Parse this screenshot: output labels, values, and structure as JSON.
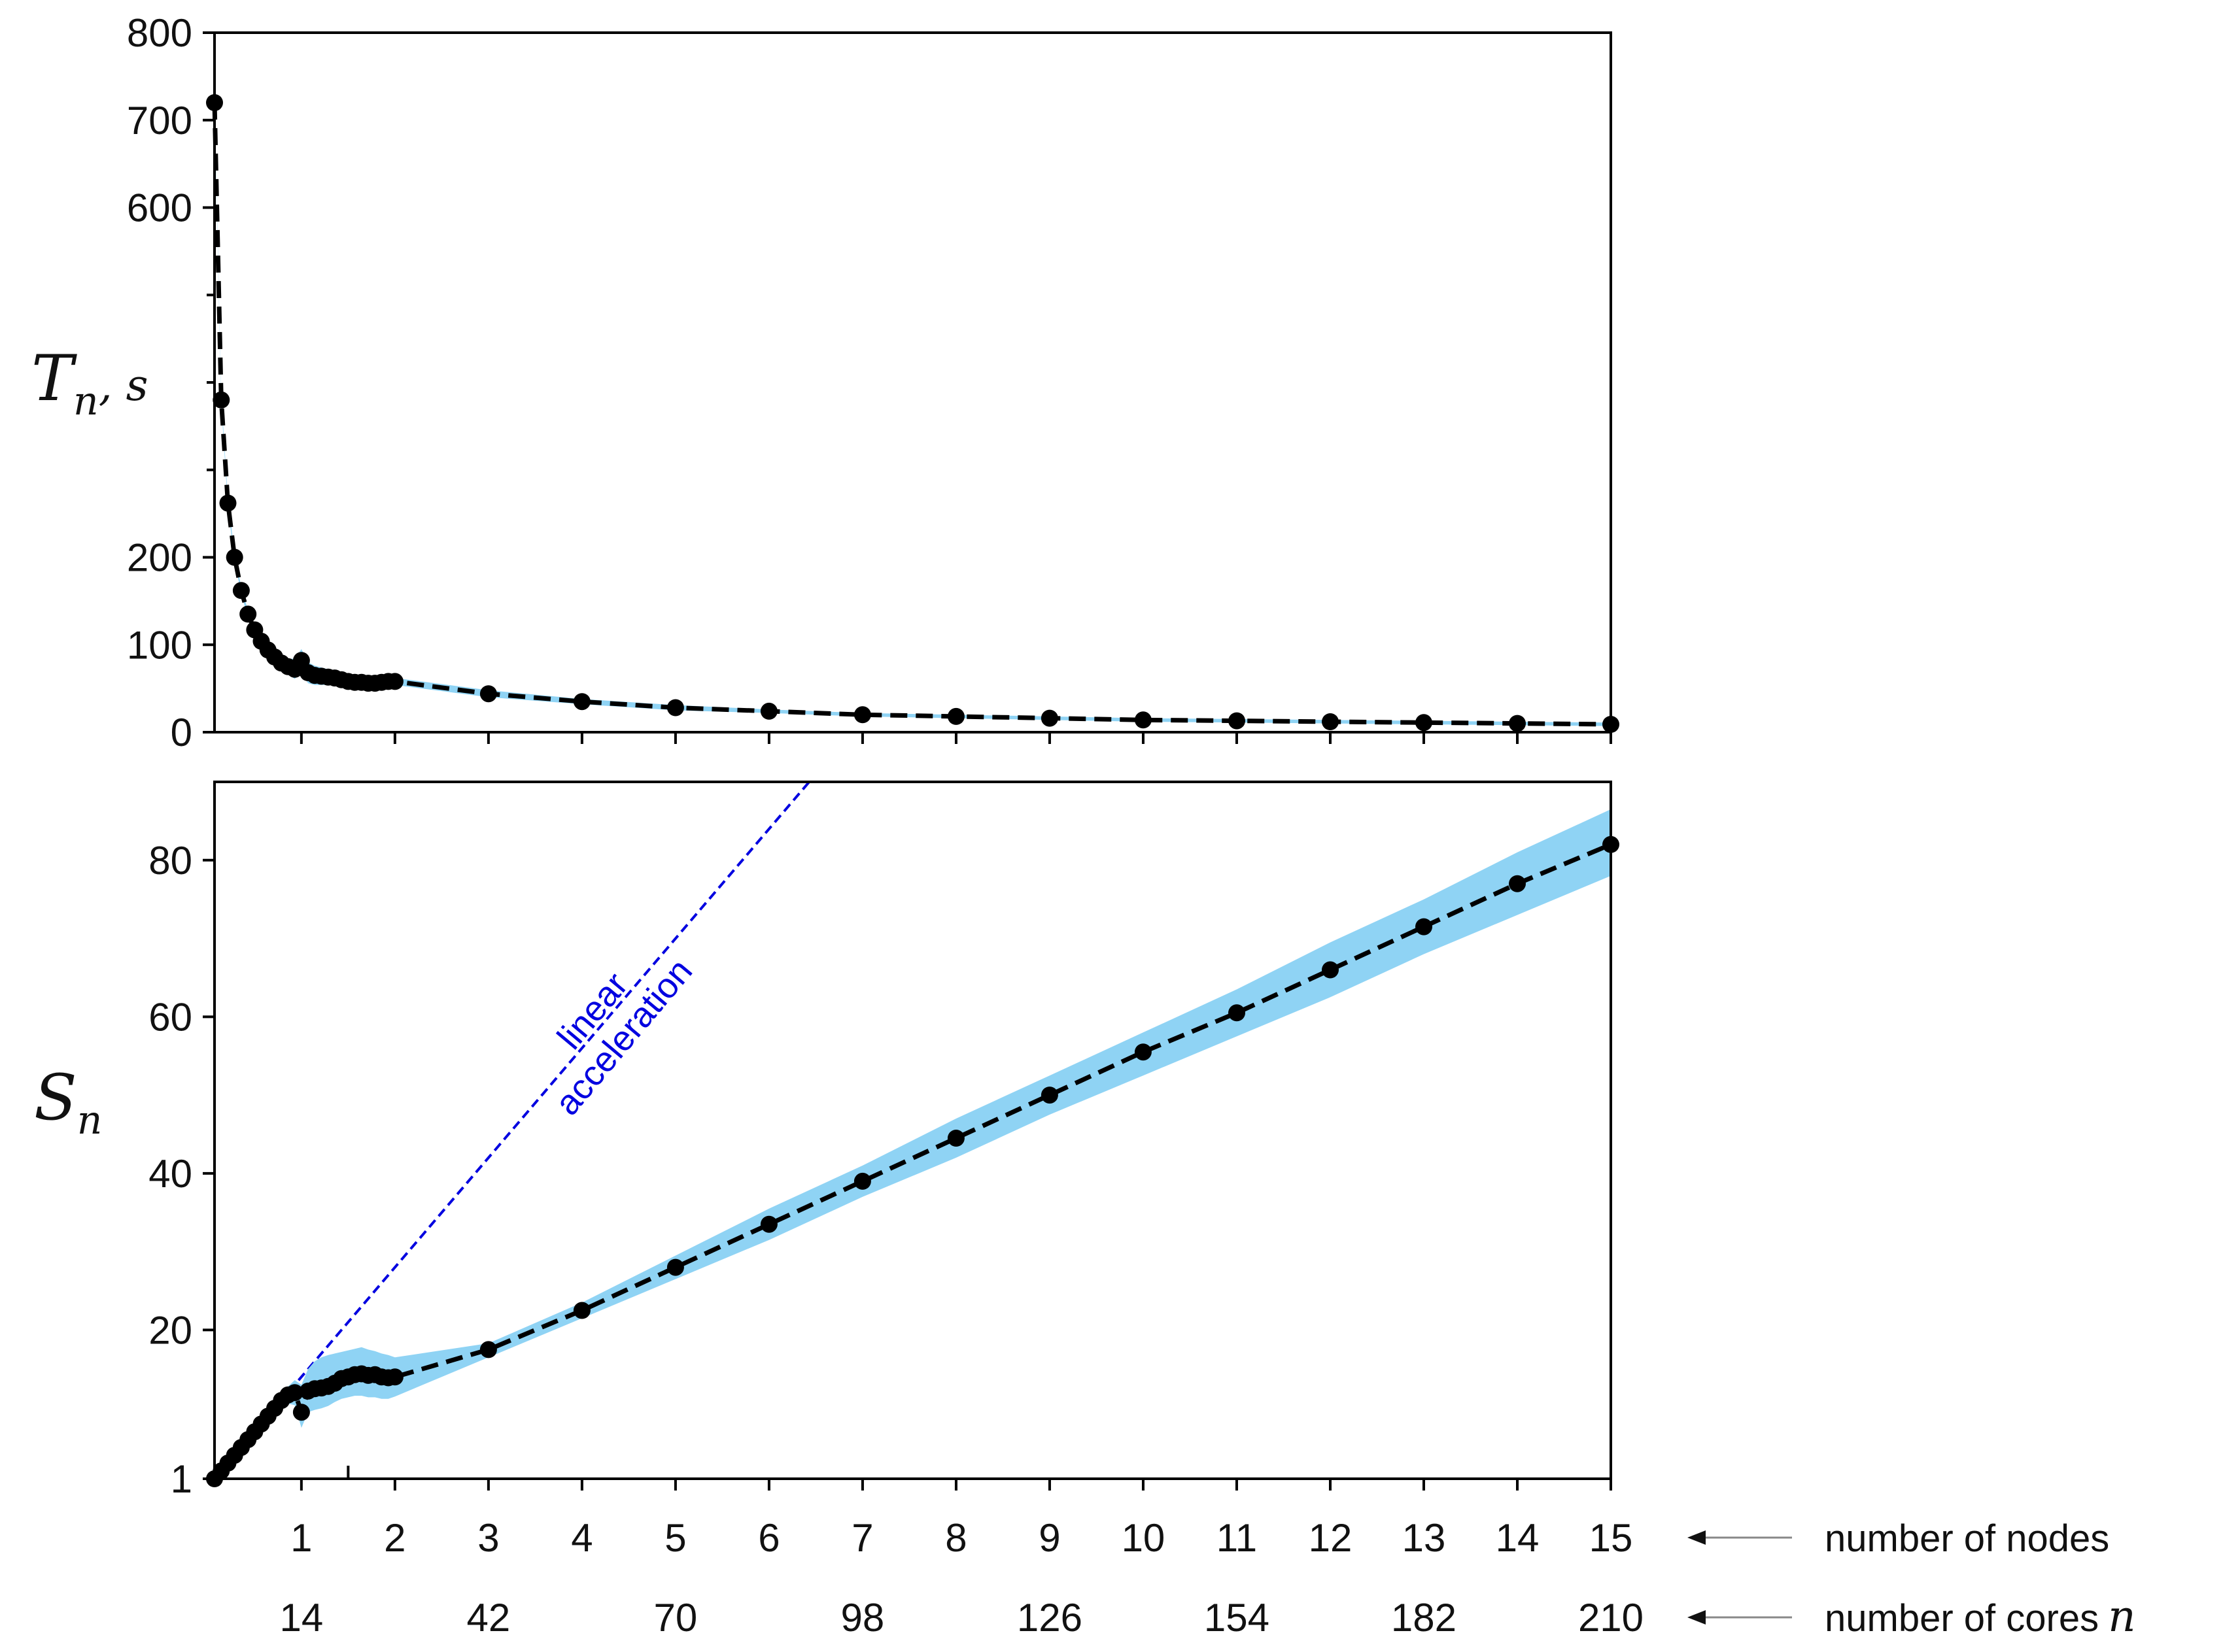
{
  "chart_data": [
    {
      "type": "line",
      "panel": "top",
      "ylabel_main": "T",
      "ylabel_sub": "n",
      "ylabel_unit": ", s",
      "ylim": [
        0,
        800
      ],
      "yticks": [
        0,
        100,
        200,
        600,
        700,
        800
      ],
      "yminor": [
        500,
        400,
        300
      ],
      "x": [
        0.071,
        0.143,
        0.214,
        0.286,
        0.357,
        0.429,
        0.5,
        0.571,
        0.643,
        0.714,
        0.786,
        0.857,
        0.929,
        1.0,
        1.071,
        1.143,
        1.214,
        1.286,
        1.357,
        1.429,
        1.5,
        1.571,
        1.643,
        1.714,
        1.786,
        1.857,
        1.929,
        2,
        3,
        4,
        5,
        6,
        7,
        8,
        9,
        10,
        11,
        12,
        13,
        14,
        15
      ],
      "series": [
        {
          "values": [
            720,
            380,
            262,
            200,
            162,
            135,
            117,
            104,
            94,
            86,
            79,
            75,
            72,
            82,
            68,
            65,
            64,
            63,
            62,
            60,
            58,
            57,
            57,
            56,
            56,
            57,
            58,
            58,
            44,
            35,
            28,
            24,
            20,
            18,
            16,
            14,
            13,
            12,
            11,
            10,
            9
          ],
          "band_upper": [
            725,
            384,
            266,
            204,
            166,
            139,
            121,
            108,
            98,
            91,
            86,
            84,
            84,
            95,
            80,
            76,
            74,
            72,
            70,
            68,
            66,
            65,
            65,
            64,
            64,
            64,
            64,
            62,
            48,
            38,
            31,
            26,
            22,
            20,
            18,
            16,
            15,
            14,
            13,
            12,
            11
          ],
          "band_lower": [
            715,
            376,
            258,
            196,
            158,
            131,
            113,
            100,
            90,
            81,
            72,
            66,
            61,
            68,
            56,
            54,
            54,
            54,
            53,
            52,
            50,
            49,
            49,
            49,
            49,
            50,
            52,
            54,
            40,
            32,
            25,
            22,
            18,
            16,
            14,
            12,
            11,
            10,
            9,
            8,
            7
          ]
        }
      ]
    },
    {
      "type": "line",
      "panel": "bottom",
      "ylabel_main": "S",
      "ylabel_sub": "n",
      "ylim": [
        1,
        90
      ],
      "yticks": [
        1,
        20,
        40,
        60,
        80
      ],
      "x": [
        0.071,
        0.143,
        0.214,
        0.286,
        0.357,
        0.429,
        0.5,
        0.571,
        0.643,
        0.714,
        0.786,
        0.857,
        0.929,
        1.0,
        1.071,
        1.143,
        1.214,
        1.286,
        1.357,
        1.429,
        1.5,
        1.571,
        1.643,
        1.714,
        1.786,
        1.857,
        1.929,
        2,
        3,
        4,
        5,
        6,
        7,
        8,
        9,
        10,
        11,
        12,
        13,
        14,
        15
      ],
      "series": [
        {
          "values": [
            1,
            2,
            3,
            4,
            5,
            6,
            7,
            8,
            9,
            10,
            11,
            11.7,
            12,
            9.5,
            12.2,
            12.5,
            12.6,
            12.8,
            13.2,
            13.8,
            14,
            14.3,
            14.4,
            14.2,
            14.3,
            14,
            13.9,
            14,
            17.5,
            22.5,
            28,
            33.5,
            39,
            44.5,
            50,
            55.5,
            60.5,
            66,
            71.5,
            77,
            82
          ],
          "band_upper": [
            1.05,
            2.1,
            3.15,
            4.2,
            5.25,
            6.3,
            7.35,
            8.4,
            9.5,
            10.6,
            11.8,
            12.8,
            13.6,
            13,
            15,
            16,
            16.5,
            16.8,
            17,
            17.2,
            17.4,
            17.6,
            17.8,
            17.5,
            17.3,
            17,
            16.8,
            16.5,
            18.3,
            23.5,
            29.5,
            35.5,
            41,
            47,
            52.5,
            58,
            63.5,
            69.5,
            75,
            81,
            86.5
          ],
          "band_lower": [
            0.95,
            1.9,
            2.85,
            3.8,
            4.75,
            5.7,
            6.65,
            7.6,
            8.5,
            9.4,
            10.2,
            10.6,
            10.4,
            7.5,
            9.5,
            9.8,
            10,
            10.3,
            10.8,
            11.2,
            11.4,
            11.6,
            11.6,
            11.4,
            11.4,
            11.2,
            11.2,
            11.5,
            16.5,
            21.5,
            26.5,
            31.5,
            37,
            42,
            47.5,
            52.5,
            57.5,
            62.5,
            68,
            73,
            78
          ]
        }
      ],
      "reference_line": {
        "label_line1": "linear",
        "label_line2": "acceleration",
        "x": [
          0.071,
          6.429
        ],
        "y": [
          1,
          90
        ]
      }
    }
  ],
  "axes": {
    "xlim": [
      0.071,
      15
    ],
    "nodes_ticks": [
      "1",
      "2",
      "3",
      "4",
      "5",
      "6",
      "7",
      "8",
      "9",
      "10",
      "11",
      "12",
      "13",
      "14",
      "15"
    ],
    "cores_ticks": [
      {
        "x": 1,
        "label": "14"
      },
      {
        "x": 3,
        "label": "42"
      },
      {
        "x": 5,
        "label": "70"
      },
      {
        "x": 7,
        "label": "98"
      },
      {
        "x": 9,
        "label": "126"
      },
      {
        "x": 11,
        "label": "154"
      },
      {
        "x": 13,
        "label": "182"
      },
      {
        "x": 15,
        "label": "210"
      }
    ],
    "nodes_label": "number of nodes",
    "cores_label": "number of cores",
    "cores_symbol": "n"
  },
  "colors": {
    "band": "#8fd3f4",
    "series": "#000000",
    "reference": "#0000e0"
  }
}
